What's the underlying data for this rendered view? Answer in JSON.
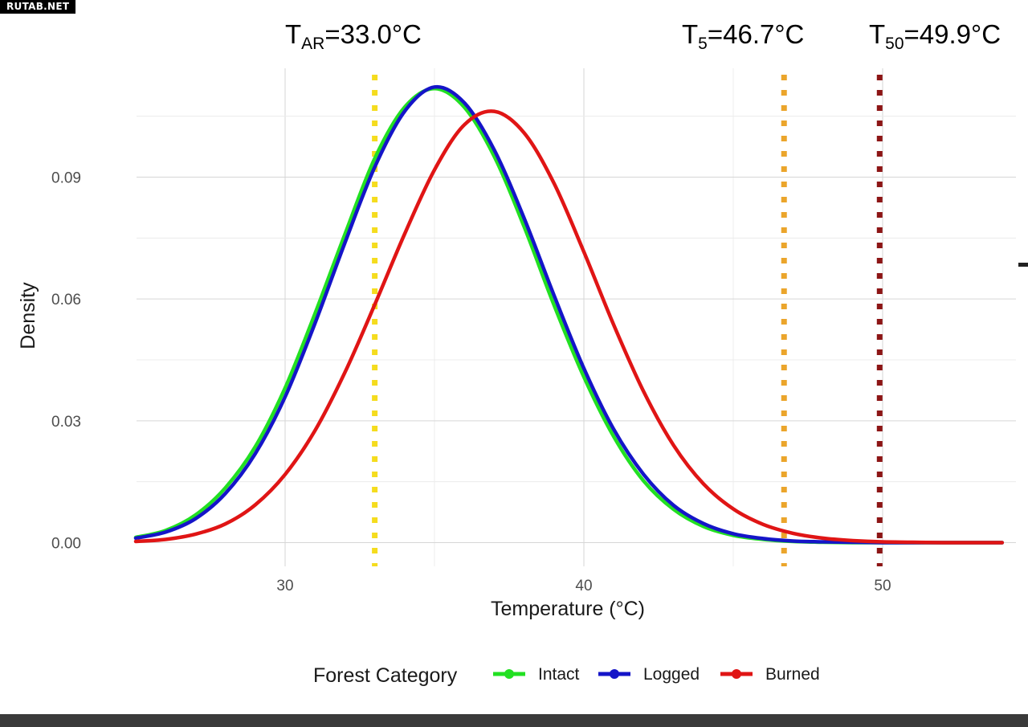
{
  "watermark": "RUTAB.NET",
  "colors": {
    "intact": "#22e022",
    "logged": "#1515c8",
    "burned": "#e01515",
    "t_ar": "#f5dc1e",
    "t_5": "#eba52b",
    "t_50": "#8c1515",
    "grid_major": "#d6d6d6",
    "grid_minor": "#ececec"
  },
  "chart_data": {
    "type": "line",
    "xlabel": "Temperature (°C)",
    "ylabel": "Density",
    "xlim": [
      25,
      54
    ],
    "ylim": [
      -0.007,
      0.114
    ],
    "x_ticks": [
      30,
      40,
      50
    ],
    "y_ticks": [
      0.0,
      0.03,
      0.06,
      0.09
    ],
    "y_tick_labels": [
      "0.00",
      "0.03",
      "0.06",
      "0.09"
    ],
    "legend": {
      "title": "Forest Category",
      "position": "bottom"
    },
    "series": [
      {
        "name": "Intact",
        "color_key": "intact",
        "x": [
          25,
          26,
          27,
          28,
          29,
          30,
          31,
          32,
          33,
          34,
          35,
          36,
          37,
          38,
          39,
          40,
          41,
          42,
          43,
          44,
          45,
          46,
          47,
          48,
          49,
          50,
          51,
          52,
          53,
          54
        ],
        "y": [
          0.0013,
          0.003,
          0.0068,
          0.0135,
          0.0236,
          0.0381,
          0.0564,
          0.0759,
          0.0946,
          0.1072,
          0.1118,
          0.1072,
          0.0951,
          0.0778,
          0.0585,
          0.0408,
          0.0261,
          0.0152,
          0.0082,
          0.004,
          0.0018,
          0.0008,
          0.0003,
          0.0001,
          0.0,
          0.0,
          0.0,
          0.0,
          0.0,
          0.0
        ]
      },
      {
        "name": "Logged",
        "color_key": "logged",
        "x": [
          25,
          26,
          27,
          28,
          29,
          30,
          31,
          32,
          33,
          34,
          35,
          36,
          37,
          38,
          39,
          40,
          41,
          42,
          43,
          44,
          45,
          46,
          47,
          48,
          49,
          50,
          51,
          52,
          53,
          54
        ],
        "y": [
          0.0011,
          0.0026,
          0.0059,
          0.0121,
          0.0219,
          0.0359,
          0.054,
          0.0738,
          0.0925,
          0.1062,
          0.1122,
          0.1083,
          0.0967,
          0.0799,
          0.0609,
          0.0429,
          0.0279,
          0.0168,
          0.0092,
          0.0047,
          0.0022,
          0.001,
          0.0004,
          0.0002,
          0.0001,
          0.0,
          0.0,
          0.0,
          0.0,
          0.0
        ]
      },
      {
        "name": "Burned",
        "color_key": "burned",
        "x": [
          25,
          26,
          27,
          28,
          29,
          30,
          31,
          32,
          33,
          34,
          35,
          36,
          37,
          38,
          39,
          40,
          41,
          42,
          43,
          44,
          45,
          46,
          47,
          48,
          49,
          50,
          51,
          52,
          53,
          54
        ],
        "y": [
          0.0003,
          0.0008,
          0.0021,
          0.0046,
          0.0093,
          0.0168,
          0.0276,
          0.0419,
          0.0586,
          0.076,
          0.0918,
          0.1029,
          0.1062,
          0.1009,
          0.0885,
          0.0716,
          0.0536,
          0.0372,
          0.024,
          0.0145,
          0.0083,
          0.0045,
          0.0023,
          0.0011,
          0.0005,
          0.0002,
          0.0001,
          0.0,
          0.0,
          0.0
        ]
      }
    ],
    "annotations": [
      {
        "key": "t_ar",
        "x": 33.0,
        "main": "T",
        "sub": "AR",
        "value": "=33.0°C",
        "color_key": "t_ar"
      },
      {
        "key": "t_5",
        "x": 46.7,
        "main": "T",
        "sub": "5",
        "value": "=46.7°C",
        "color_key": "t_5"
      },
      {
        "key": "t_50",
        "x": 49.9,
        "main": "T",
        "sub": "50",
        "value": "=49.9°C",
        "color_key": "t_50"
      }
    ]
  }
}
